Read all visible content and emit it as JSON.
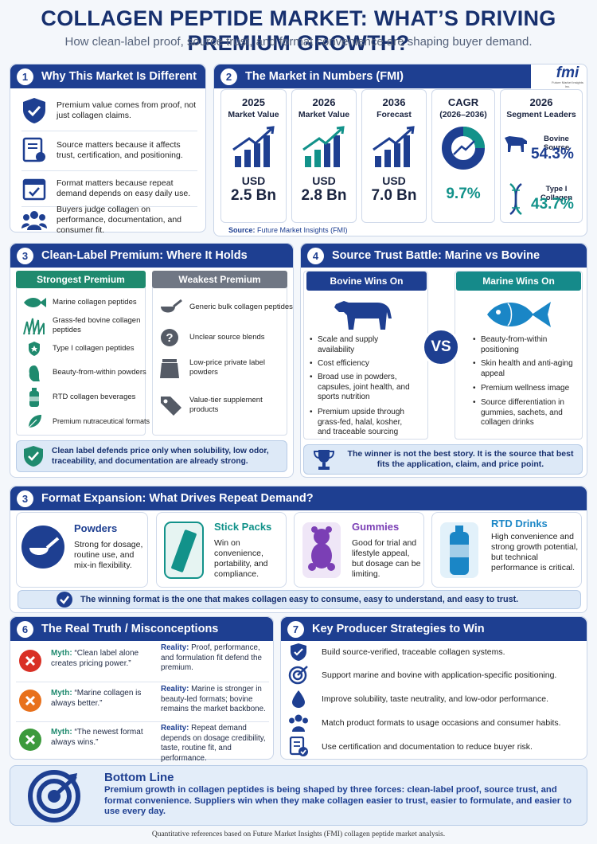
{
  "header": {
    "title": "COLLAGEN PEPTIDE MARKET: WHAT’S DRIVING PREMIUM GROWTH?",
    "subtitle": "How clean-label proof, source trust, and format convenience are shaping buyer demand."
  },
  "s1": {
    "num": "1",
    "title": "Why This Market Is Different",
    "items": [
      {
        "icon": "shield-check-icon",
        "text": "Premium value comes from proof, not just collagen claims."
      },
      {
        "icon": "certificate-icon",
        "text": "Source matters because it affects trust, certification, and positioning."
      },
      {
        "icon": "calendar-check-icon",
        "text": "Format matters because repeat demand depends on easy daily use."
      },
      {
        "icon": "people-group-icon",
        "text": "Buyers judge collagen on performance, documentation, and consumer fit."
      }
    ]
  },
  "s2": {
    "num": "2",
    "title": "The Market in Numbers (FMI)",
    "logo": "fmi",
    "logo_sub": "Future Market Insights Inc.",
    "cards": [
      {
        "h1": "2025",
        "h2": "Market Value",
        "unit": "USD",
        "value": "2.5 Bn"
      },
      {
        "h1": "2026",
        "h2": "Market Value",
        "unit": "USD",
        "value": "2.8 Bn"
      },
      {
        "h1": "2036",
        "h2": "Forecast",
        "unit": "USD",
        "value": "7.0 Bn"
      }
    ],
    "cagr": {
      "h1": "CAGR",
      "h2": "(2026–2036)",
      "value": "9.7%"
    },
    "leaders": {
      "h1": "2026",
      "h2": "Segment Leaders",
      "l1": "Bovine Source",
      "v1": "54.3%",
      "l2": "Type I Collagen",
      "v2": "43.7%"
    },
    "source_label": "Source:",
    "source_text": "Future Market Insights (FMI)"
  },
  "s3": {
    "num": "3",
    "title": "Clean-Label Premium: Where It Holds",
    "strong_title": "Strongest Premium",
    "weak_title": "Weakest Premium",
    "strong": [
      "Marine collagen peptides",
      "Grass-fed bovine collagen peptides",
      "Type I collagen peptides",
      "Beauty-from-within powders",
      "RTD collagen beverages",
      "Premium nutraceutical formats"
    ],
    "weak": [
      "Generic bulk collagen peptides",
      "Unclear source blends",
      "Low-price private label powders",
      "Value-tier supplement products"
    ],
    "note": "Clean label defends price only when solubility, low odor, traceability, and documentation are already strong."
  },
  "s4": {
    "num": "4",
    "title": "Source Trust Battle: Marine vs Bovine",
    "bovine_title": "Bovine Wins On",
    "marine_title": "Marine Wins On",
    "vs": "VS",
    "bovine": [
      "Scale and supply availability",
      "Cost efficiency",
      "Broad use in powders, capsules, joint health, and sports nutrition",
      "Premium upside through grass-fed, halal, kosher, and traceable sourcing"
    ],
    "marine": [
      "Beauty-from-within positioning",
      "Skin health and anti-aging appeal",
      "Premium wellness image",
      "Source differentiation in gummies, sachets, and collagen drinks"
    ],
    "note": "The winner is not the best story. It is the source that best fits the application, claim, and price point."
  },
  "s5": {
    "num": "3",
    "title": "Format Expansion: What Drives Repeat Demand?",
    "formats": [
      {
        "title": "Powders",
        "text": "Strong for dosage, routine use, and mix-in flexibility.",
        "color": "#1e3f91"
      },
      {
        "title": "Stick Packs",
        "text": "Win on convenience, portability, and compliance.",
        "color": "#12928a"
      },
      {
        "title": "Gummies",
        "text": "Good for trial and lifestyle appeal, but dosage can be limiting.",
        "color": "#7b3fb5"
      },
      {
        "title": "RTD Drinks",
        "text": "High convenience and strong growth potential, but technical performance is critical.",
        "color": "#1a86c6"
      }
    ],
    "note": "The winning format is the one that makes collagen easy to consume, easy to understand, and easy to trust."
  },
  "s6": {
    "num": "6",
    "title": "The Real Truth / Misconceptions",
    "myth_label": "Myth:",
    "reality_label": "Reality:",
    "rows": [
      {
        "myth": "“Clean label alone creates pricing power.”",
        "reality": "Proof, performance, and formulation fit defend the premium.",
        "color": "#d93025"
      },
      {
        "myth": "“Marine collagen is always better.”",
        "reality": "Marine is stronger in beauty-led formats; bovine remains the market backbone.",
        "color": "#e8711c"
      },
      {
        "myth": "“The newest format always wins.”",
        "reality": "Repeat demand depends on dosage credibility, taste, routine fit, and performance.",
        "color": "#3c9a3c"
      }
    ]
  },
  "s7": {
    "num": "7",
    "title": "Key Producer Strategies to Win",
    "items": [
      {
        "icon": "shield-check-icon",
        "text": "Build source-verified, traceable collagen systems."
      },
      {
        "icon": "target-icon",
        "text": "Support marine and bovine with application-specific positioning."
      },
      {
        "icon": "droplet-icon",
        "text": "Improve solubility, taste neutrality, and low-odor performance."
      },
      {
        "icon": "people-group-icon",
        "text": "Match product formats to usage occasions and consumer habits."
      },
      {
        "icon": "document-check-icon",
        "text": "Use certification and documentation to reduce buyer risk."
      }
    ]
  },
  "bottom": {
    "title": "Bottom Line",
    "text": "Premium growth in collagen peptides is being shaped by three forces: clean-label proof, source trust, and format convenience. Suppliers win when they make collagen easier to trust, easier to formulate, and easier to use every day."
  },
  "footer": "Quantitative references based on Future Market Insights (FMI) collagen peptide market analysis."
}
